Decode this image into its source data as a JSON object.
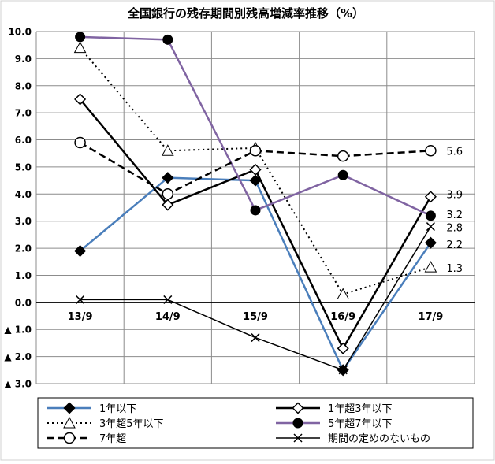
{
  "chart_data": {
    "type": "line",
    "title": "全国銀行の残存期間別残高増減率推移（%）",
    "categories": [
      "13/9",
      "14/9",
      "15/9",
      "16/9",
      "17/9"
    ],
    "ylim": [
      -3.0,
      10.0
    ],
    "ytick_labels": [
      "10.0",
      "9.0",
      "8.0",
      "7.0",
      "6.0",
      "5.0",
      "4.0",
      "3.0",
      "2.0",
      "1.0",
      "0.0",
      "▲ 1.0",
      "▲ 2.0",
      "▲ 3.0"
    ],
    "ytick_values": [
      10,
      9,
      8,
      7,
      6,
      5,
      4,
      3,
      2,
      1,
      0,
      -1,
      -2,
      -3
    ],
    "grid": true,
    "legend_position": "bottom",
    "series": [
      {
        "name": "1年以下",
        "values": [
          1.9,
          4.6,
          4.5,
          -2.5,
          2.2
        ],
        "color": "#4a7ebb",
        "dash": "solid",
        "marker": "filled-diamond",
        "end_label": "2.2"
      },
      {
        "name": "1年超3年以下",
        "values": [
          7.5,
          3.6,
          4.9,
          -1.7,
          3.9
        ],
        "color": "#000000",
        "dash": "solid",
        "marker": "open-diamond",
        "end_label": "3.9"
      },
      {
        "name": "3年超5年以下",
        "values": [
          9.4,
          5.6,
          5.7,
          0.3,
          1.3
        ],
        "color": "#000000",
        "dash": "dotted",
        "marker": "open-triangle",
        "end_label": "1.3"
      },
      {
        "name": "5年超7年以下",
        "values": [
          9.8,
          9.7,
          3.4,
          4.7,
          3.2
        ],
        "color": "#8064a2",
        "dash": "solid",
        "marker": "filled-circle",
        "end_label": "3.2"
      },
      {
        "name": "7年超",
        "values": [
          5.9,
          4.0,
          5.6,
          5.4,
          5.6
        ],
        "color": "#000000",
        "dash": "dashed",
        "marker": "open-circle",
        "end_label": "5.6"
      },
      {
        "name": "期間の定めのないもの",
        "values": [
          0.1,
          0.1,
          -1.3,
          -2.5,
          2.8
        ],
        "color": "#000000",
        "dash": "solid",
        "marker": "x",
        "end_label": "2.8"
      }
    ]
  }
}
